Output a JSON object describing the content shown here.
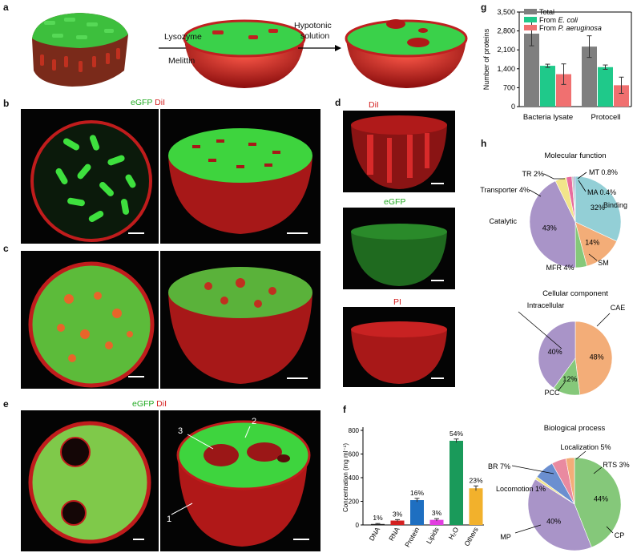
{
  "colors": {
    "total": "#7f7f7f",
    "ecoli": "#1fc98a",
    "paeruginosa": "#f07070",
    "red_dye": "#e22e2e",
    "green_dye": "#3fd24a"
  },
  "panel_labels": {
    "a": "a",
    "b": "b",
    "c": "c",
    "d": "d",
    "e": "e",
    "f": "f",
    "g": "g",
    "h": "h"
  },
  "panel_a": {
    "arrow1_top": "Lysozyme",
    "arrow1_bottom": "Melittin",
    "arrow2_top": "Hypotonic",
    "arrow2_bottom": "solution"
  },
  "panel_b": {
    "title_green": "eGFP",
    "title_red": "DiI"
  },
  "panel_d": {
    "label_top": "DiI",
    "label_mid": "eGFP",
    "label_bottom": "PI"
  },
  "panel_e": {
    "title_green": "eGFP",
    "title_red": "DiI",
    "callout_1": "1",
    "callout_2": "2",
    "callout_3": "3"
  },
  "chart_data": [
    {
      "panel": "f",
      "type": "bar",
      "ylabel": "Concentration (mg ml⁻¹)",
      "ylim": [
        0,
        800
      ],
      "yticks": [
        "0",
        "200",
        "400",
        "600",
        "800"
      ],
      "categories": [
        "DNA",
        "RNA",
        "Protein",
        "Lipids",
        "H₂O",
        "Others"
      ],
      "values": [
        8,
        37,
        210,
        43,
        712,
        310
      ],
      "errors": [
        4,
        8,
        15,
        10,
        15,
        20
      ],
      "labels": [
        "1%",
        "3%",
        "16%",
        "3%",
        "54%",
        "23%"
      ],
      "colors": [
        "#222222",
        "#d42020",
        "#1e6fc1",
        "#e23de0",
        "#1a9a5a",
        "#f2b12c"
      ]
    },
    {
      "panel": "g",
      "type": "bar",
      "ylabel": "Number of proteins",
      "ylim": [
        0,
        3500
      ],
      "yticks": [
        "0",
        "700",
        "1,400",
        "2,100",
        "2,800",
        "3,500"
      ],
      "categories": [
        "Bacteria lysate",
        "Protocell"
      ],
      "legend": [
        "Total",
        "From E. coli",
        "From P. aeruginosa"
      ],
      "legend_prefix": [
        "",
        "From ",
        "From "
      ],
      "legend_italic": [
        "",
        "E. coli",
        "P. aeruginosa"
      ],
      "series": [
        {
          "name": "Total",
          "values": [
            2700,
            2220
          ],
          "errors": [
            450,
            400
          ]
        },
        {
          "name": "From E. coli",
          "values": [
            1510,
            1460
          ],
          "errors": [
            60,
            80
          ]
        },
        {
          "name": "From P. aeruginosa",
          "values": [
            1200,
            790
          ],
          "errors": [
            380,
            300
          ]
        }
      ]
    },
    {
      "panel": "h1",
      "type": "pie",
      "title": "Molecular function",
      "slices": [
        {
          "label": "Binding",
          "value": 32,
          "pct": "32%",
          "color": "#93cfd6"
        },
        {
          "label": "SM",
          "value": 14,
          "pct": "14%",
          "color": "#f3ad78"
        },
        {
          "label": "MFR",
          "value": 4,
          "pct": "",
          "color": "#85c87a"
        },
        {
          "label": "Catalytic",
          "value": 43,
          "pct": "43%",
          "color": "#a994c8"
        },
        {
          "label": "Transporter",
          "value": 4,
          "pct": "",
          "color": "#f2e58a"
        },
        {
          "label": "TR",
          "value": 2,
          "pct": "",
          "color": "#e96c9e"
        },
        {
          "label": "MT",
          "value": 0.8,
          "pct": "",
          "color": "#c5c5c5"
        },
        {
          "label": "MA",
          "value": 0.4,
          "pct": "",
          "color": "#5a6fc8"
        }
      ],
      "ext_labels": [
        "Binding",
        "SM",
        "MFR 4%",
        "Catalytic",
        "Transporter 4%",
        "TR 2%",
        "MT 0.8%",
        "MA 0.4%"
      ]
    },
    {
      "panel": "h2",
      "type": "pie",
      "title": "Cellular component",
      "slices": [
        {
          "label": "CAE",
          "value": 48,
          "pct": "48%",
          "color": "#f3ad78"
        },
        {
          "label": "PCC",
          "value": 12,
          "pct": "12%",
          "color": "#85c87a"
        },
        {
          "label": "Intracellular",
          "value": 40,
          "pct": "40%",
          "color": "#a994c8"
        }
      ],
      "ext_labels": [
        "CAE",
        "PCC",
        "Intracellular"
      ]
    },
    {
      "panel": "h3",
      "type": "pie",
      "title": "Biological process",
      "slices": [
        {
          "label": "CP",
          "value": 44,
          "pct": "44%",
          "color": "#85c87a"
        },
        {
          "label": "MP",
          "value": 40,
          "pct": "40%",
          "color": "#a994c8"
        },
        {
          "label": "Locomotion",
          "value": 1,
          "pct": "",
          "color": "#f2e58a"
        },
        {
          "label": "BR",
          "value": 7,
          "pct": "",
          "color": "#6b8fd0"
        },
        {
          "label": "Localization",
          "value": 5,
          "pct": "",
          "color": "#e98aa0"
        },
        {
          "label": "RTS",
          "value": 3,
          "pct": "",
          "color": "#f3ad78"
        }
      ],
      "ext_labels": [
        "CP",
        "MP",
        "Locomotion 1%",
        "BR 7%",
        "Localization 5%",
        "RTS 3%"
      ]
    }
  ]
}
